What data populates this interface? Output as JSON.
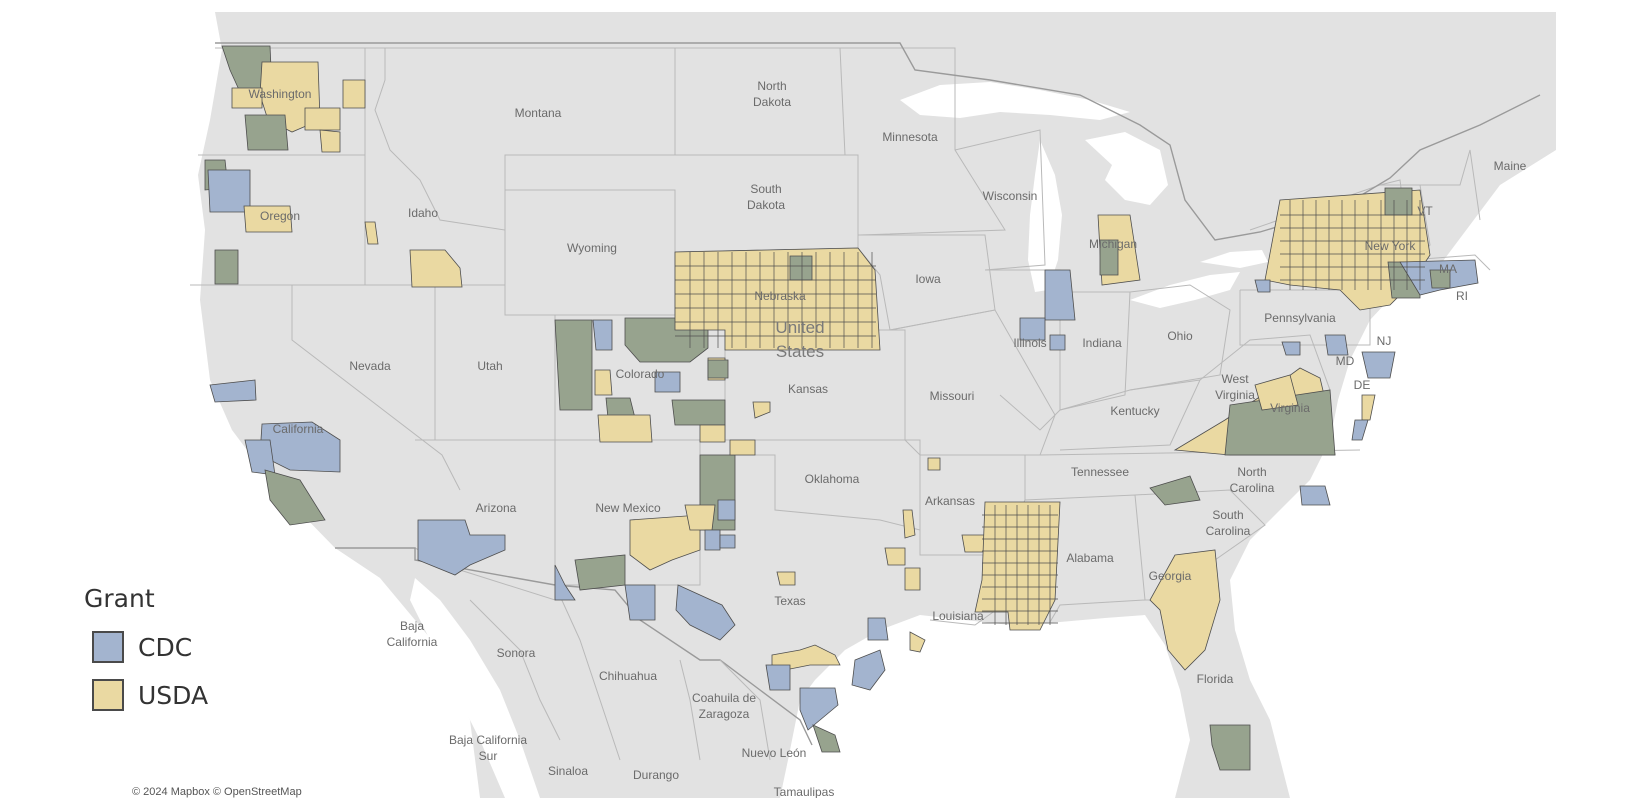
{
  "legend": {
    "title": "Grant",
    "items": [
      {
        "label": "CDC",
        "color": "#a3b4cf"
      },
      {
        "label": "USDA",
        "color": "#ead9a2"
      }
    ],
    "overlap_color": "#97a38e"
  },
  "map_labels": {
    "washington": "Washington",
    "oregon": "Oregon",
    "california": "California",
    "idaho": "Idaho",
    "nevada": "Nevada",
    "montana": "Montana",
    "wyoming": "Wyoming",
    "utah": "Utah",
    "arizona": "Arizona",
    "colorado": "Colorado",
    "new_mexico": "New Mexico",
    "north_dakota_1": "North",
    "north_dakota_2": "Dakota",
    "south_dakota_1": "South",
    "south_dakota_2": "Dakota",
    "nebraska": "Nebraska",
    "kansas": "Kansas",
    "oklahoma": "Oklahoma",
    "texas": "Texas",
    "minnesota": "Minnesota",
    "iowa": "Iowa",
    "missouri": "Missouri",
    "arkansas": "Arkansas",
    "louisiana": "Louisiana",
    "wisconsin": "Wisconsin",
    "illinois": "Illinois",
    "michigan": "Michigan",
    "indiana": "Indiana",
    "ohio": "Ohio",
    "kentucky": "Kentucky",
    "tennessee": "Tennessee",
    "alabama": "Alabama",
    "georgia": "Georgia",
    "florida": "Florida",
    "south_carolina_1": "South",
    "south_carolina_2": "Carolina",
    "north_carolina_1": "North",
    "north_carolina_2": "Carolina",
    "virginia": "Virginia",
    "west_virginia_1": "West",
    "west_virginia_2": "Virginia",
    "pennsylvania": "Pennsylvania",
    "new_york": "New York",
    "maine": "Maine",
    "vt": "VT",
    "ma": "MA",
    "ri": "RI",
    "nj": "NJ",
    "md": "MD",
    "de": "DE",
    "united_states_1": "United",
    "united_states_2": "States",
    "baja_california_1": "Baja",
    "baja_california_2": "California",
    "sonora": "Sonora",
    "chihuahua": "Chihuahua",
    "coahuila_1": "Coahuila de",
    "coahuila_2": "Zaragoza",
    "baja_california_sur_1": "Baja California",
    "baja_california_sur_2": "Sur",
    "sinaloa": "Sinaloa",
    "durango": "Durango",
    "nuevo_leon": "Nuevo León",
    "tamaulipas": "Tamaulipas"
  },
  "attribution": "© 2024 Mapbox  © OpenStreetMap",
  "colors": {
    "land": "#e2e2e2",
    "water": "#ffffff",
    "background": "#ffffff"
  }
}
